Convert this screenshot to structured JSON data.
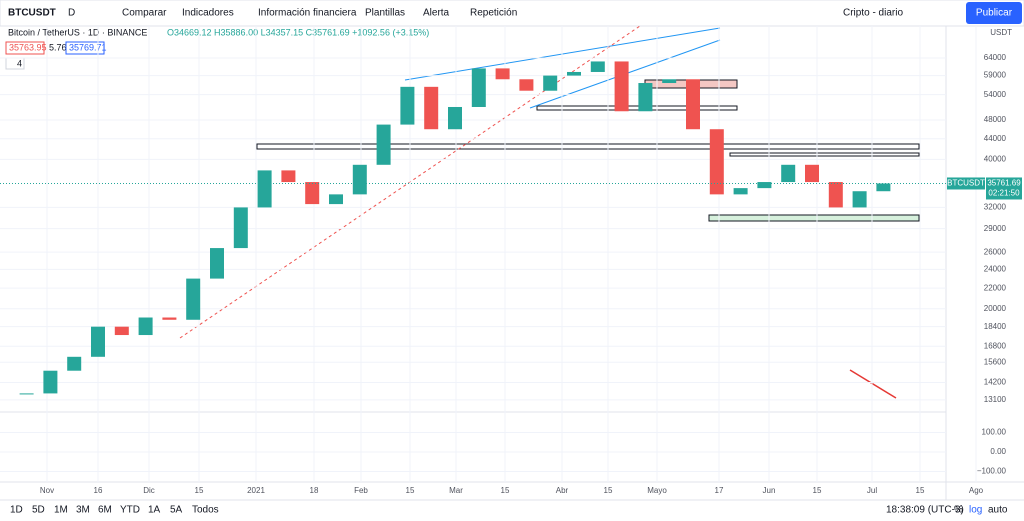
{
  "toolbar": {
    "symbol": "BTCUSDT",
    "interval": "D",
    "items": [
      "Comparar",
      "Indicadores",
      "Información financiera",
      "Plantillas",
      "Alerta",
      "Repetición"
    ],
    "layout": "Cripto - diario",
    "publish": "Publicar"
  },
  "legend": {
    "title": "Bitcoin / TetherUS · 1D · BINANCE",
    "ohlc": "O34669.12 H35886.00 L34357.15 C35761.69 +1092.56 (+3.15%)",
    "bid": "35763.95",
    "spread": "5.76",
    "ask": "35769.71",
    "collapsed": "4"
  },
  "chart_data": {
    "type": "candlestick",
    "axis_unit": "USDT",
    "log_scale": true,
    "values": [
      13500,
      15000,
      16000,
      18400,
      17700,
      19200,
      19000,
      23000,
      26500,
      32000,
      38000,
      36000,
      32500,
      34000,
      39000,
      47000,
      56000,
      46000,
      51000,
      61000,
      58000,
      55000,
      59000,
      60000,
      63000,
      50000,
      57000,
      58000,
      46000,
      34000,
      35000,
      36000,
      39000,
      36000,
      32000,
      34500,
      35761.69
    ],
    "up_color": "#26a69a",
    "down_color": "#ef5350",
    "ylim": [
      12500,
      72900
    ],
    "yticks": [
      64000,
      59000,
      54000,
      48000,
      44000,
      40000,
      32000,
      29000,
      26000,
      24000,
      22000,
      20000,
      18400,
      16800,
      15600,
      14200,
      13100
    ],
    "last_price": {
      "symbol": "BTCUSDT",
      "value": 35761.69,
      "countdown": "02:21:50"
    },
    "x_labels": [
      "Nov",
      "16",
      "Dic",
      "15",
      "2021",
      "18",
      "Feb",
      "15",
      "Mar",
      "15",
      "Abr",
      "15",
      "Mayo",
      "17",
      "Jun",
      "15",
      "Jul",
      "15",
      "Ago"
    ],
    "oscillator_ticks": [
      {
        "value": 100,
        "label": "100.00"
      },
      {
        "value": 0,
        "label": "0.00"
      },
      {
        "value": -100,
        "label": "−100.00"
      }
    ]
  },
  "footer": {
    "ranges": [
      "1D",
      "5D",
      "1M",
      "3M",
      "6M",
      "YTD",
      "1A",
      "5A",
      "Todos"
    ],
    "clock": "18:38:09 (UTC-3)",
    "percent": "%",
    "log": "log",
    "auto": "auto"
  }
}
